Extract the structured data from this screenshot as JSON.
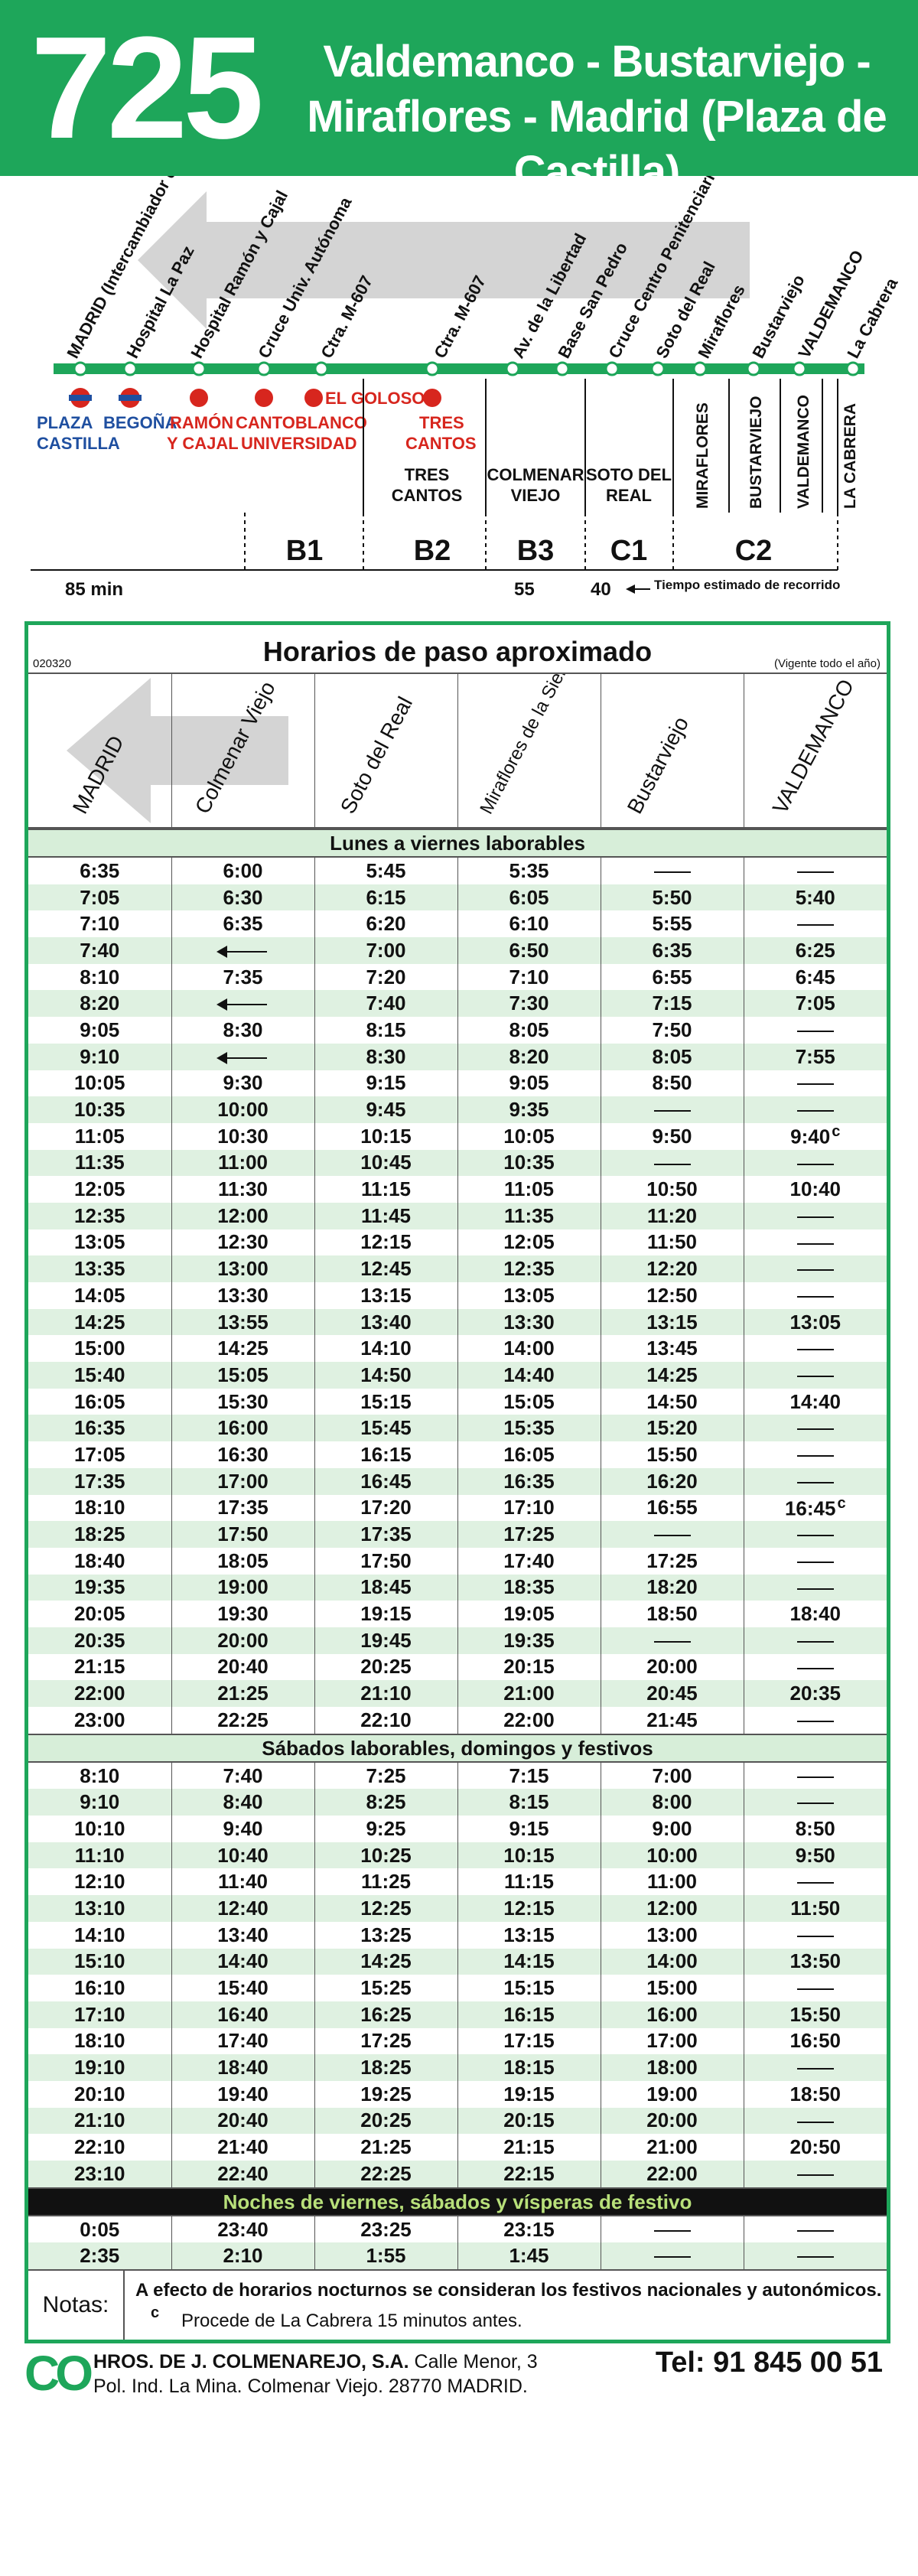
{
  "header": {
    "route": "725",
    "line1": "Valdemanco - Bustarviejo -",
    "line2": "Miraflores - Madrid (Plaza de Castilla)"
  },
  "map": {
    "stops": [
      "MADRID (Intercambiador de Plaza de Castilla)",
      "Hospital La Paz",
      "Hospital Ramón y Cajal",
      "Cruce Univ. Autónoma",
      "Ctra. M-607",
      "Ctra. M-607",
      "Av. de la Libertad",
      "Base San Pedro",
      "Cruce Centro Penitenciario Soto del Real",
      "Soto del Real",
      "Miraflores",
      "Bustarviejo",
      "VALDEMANCO",
      "La Cabrera"
    ],
    "metro_labels": [
      "PLAZA",
      "CASTILLA",
      "BEGOÑA"
    ],
    "rail_labels": [
      "RAMÓN",
      "Y CAJAL",
      "CANTOBLANCO",
      "UNIVERSIDAD",
      "EL GOLOSO",
      "TRES",
      "CANTOS"
    ],
    "towns": [
      "TRES",
      "CANTOS",
      "COLMENAR",
      "VIEJO",
      "SOTO DEL",
      "REAL",
      "MIRAFLORES",
      "BUSTARVIEJO",
      "VALDEMANCO",
      "LA CABRERA"
    ],
    "zones": [
      "B1",
      "B2",
      "B3",
      "C1",
      "C2"
    ],
    "times": [
      "85 min",
      "55",
      "40"
    ],
    "time_note": "Tiempo estimado de recorrido"
  },
  "timetable": {
    "code": "020320",
    "title": "Horarios de paso aproximado",
    "validity": "(Vigente todo el año)",
    "columns": [
      "MADRID",
      "Colmenar Viejo",
      "Soto del Real",
      "Miraflores de la Sierra",
      "Bustarviejo",
      "VALDEMANCO"
    ],
    "sections": [
      {
        "title": "Lunes a viernes laborables",
        "rows": [
          [
            "6:35",
            "6:00",
            "5:45",
            "5:35",
            "-",
            "-"
          ],
          [
            "7:05",
            "6:30",
            "6:15",
            "6:05",
            "5:50",
            "5:40"
          ],
          [
            "7:10",
            "6:35",
            "6:20",
            "6:10",
            "5:55",
            "-"
          ],
          [
            "7:40",
            "<",
            "7:00",
            "6:50",
            "6:35",
            "6:25"
          ],
          [
            "8:10",
            "7:35",
            "7:20",
            "7:10",
            "6:55",
            "6:45"
          ],
          [
            "8:20",
            "<",
            "7:40",
            "7:30",
            "7:15",
            "7:05"
          ],
          [
            "9:05",
            "8:30",
            "8:15",
            "8:05",
            "7:50",
            "-"
          ],
          [
            "9:10",
            "<",
            "8:30",
            "8:20",
            "8:05",
            "7:55"
          ],
          [
            "10:05",
            "9:30",
            "9:15",
            "9:05",
            "8:50",
            "-"
          ],
          [
            "10:35",
            "10:00",
            "9:45",
            "9:35",
            "-",
            "-"
          ],
          [
            "11:05",
            "10:30",
            "10:15",
            "10:05",
            "9:50",
            "9:40^c"
          ],
          [
            "11:35",
            "11:00",
            "10:45",
            "10:35",
            "-",
            "-"
          ],
          [
            "12:05",
            "11:30",
            "11:15",
            "11:05",
            "10:50",
            "10:40"
          ],
          [
            "12:35",
            "12:00",
            "11:45",
            "11:35",
            "11:20",
            "-"
          ],
          [
            "13:05",
            "12:30",
            "12:15",
            "12:05",
            "11:50",
            "-"
          ],
          [
            "13:35",
            "13:00",
            "12:45",
            "12:35",
            "12:20",
            "-"
          ],
          [
            "14:05",
            "13:30",
            "13:15",
            "13:05",
            "12:50",
            "-"
          ],
          [
            "14:25",
            "13:55",
            "13:40",
            "13:30",
            "13:15",
            "13:05"
          ],
          [
            "15:00",
            "14:25",
            "14:10",
            "14:00",
            "13:45",
            "-"
          ],
          [
            "15:40",
            "15:05",
            "14:50",
            "14:40",
            "14:25",
            "-"
          ],
          [
            "16:05",
            "15:30",
            "15:15",
            "15:05",
            "14:50",
            "14:40"
          ],
          [
            "16:35",
            "16:00",
            "15:45",
            "15:35",
            "15:20",
            "-"
          ],
          [
            "17:05",
            "16:30",
            "16:15",
            "16:05",
            "15:50",
            "-"
          ],
          [
            "17:35",
            "17:00",
            "16:45",
            "16:35",
            "16:20",
            "-"
          ],
          [
            "18:10",
            "17:35",
            "17:20",
            "17:10",
            "16:55",
            "16:45^c"
          ],
          [
            "18:25",
            "17:50",
            "17:35",
            "17:25",
            "-",
            "-"
          ],
          [
            "18:40",
            "18:05",
            "17:50",
            "17:40",
            "17:25",
            "-"
          ],
          [
            "19:35",
            "19:00",
            "18:45",
            "18:35",
            "18:20",
            "-"
          ],
          [
            "20:05",
            "19:30",
            "19:15",
            "19:05",
            "18:50",
            "18:40"
          ],
          [
            "20:35",
            "20:00",
            "19:45",
            "19:35",
            "-",
            "-"
          ],
          [
            "21:15",
            "20:40",
            "20:25",
            "20:15",
            "20:00",
            "-"
          ],
          [
            "22:00",
            "21:25",
            "21:10",
            "21:00",
            "20:45",
            "20:35"
          ],
          [
            "23:00",
            "22:25",
            "22:10",
            "22:00",
            "21:45",
            "-"
          ]
        ]
      },
      {
        "title": "Sábados laborables, domingos y festivos",
        "rows": [
          [
            "8:10",
            "7:40",
            "7:25",
            "7:15",
            "7:00",
            "-"
          ],
          [
            "9:10",
            "8:40",
            "8:25",
            "8:15",
            "8:00",
            "-"
          ],
          [
            "10:10",
            "9:40",
            "9:25",
            "9:15",
            "9:00",
            "8:50"
          ],
          [
            "11:10",
            "10:40",
            "10:25",
            "10:15",
            "10:00",
            "9:50"
          ],
          [
            "12:10",
            "11:40",
            "11:25",
            "11:15",
            "11:00",
            "-"
          ],
          [
            "13:10",
            "12:40",
            "12:25",
            "12:15",
            "12:00",
            "11:50"
          ],
          [
            "14:10",
            "13:40",
            "13:25",
            "13:15",
            "13:00",
            "-"
          ],
          [
            "15:10",
            "14:40",
            "14:25",
            "14:15",
            "14:00",
            "13:50"
          ],
          [
            "16:10",
            "15:40",
            "15:25",
            "15:15",
            "15:00",
            "-"
          ],
          [
            "17:10",
            "16:40",
            "16:25",
            "16:15",
            "16:00",
            "15:50"
          ],
          [
            "18:10",
            "17:40",
            "17:25",
            "17:15",
            "17:00",
            "16:50"
          ],
          [
            "19:10",
            "18:40",
            "18:25",
            "18:15",
            "18:00",
            "-"
          ],
          [
            "20:10",
            "19:40",
            "19:25",
            "19:15",
            "19:00",
            "18:50"
          ],
          [
            "21:10",
            "20:40",
            "20:25",
            "20:15",
            "20:00",
            "-"
          ],
          [
            "22:10",
            "21:40",
            "21:25",
            "21:15",
            "21:00",
            "20:50"
          ],
          [
            "23:10",
            "22:40",
            "22:25",
            "22:15",
            "22:00",
            "-"
          ]
        ]
      },
      {
        "title": "Noches de viernes, sábados y vísperas de festivo",
        "night": true,
        "rows": [
          [
            "0:05",
            "23:40",
            "23:25",
            "23:15",
            "-",
            "-"
          ],
          [
            "2:35",
            "2:10",
            "1:55",
            "1:45",
            "-",
            "-"
          ]
        ]
      }
    ],
    "notes_label": "Notas:",
    "note1": "A efecto de horarios nocturnos se consideran los festivos nacionales y autonómicos.",
    "note2_mark": "c",
    "note2": "Procede de La Cabrera 15 minutos antes."
  },
  "company": {
    "logo": "CO",
    "name": "HROS. DE J. COLMENAREJO, S.A.",
    "address1": "Calle Menor, 3",
    "address2": "Pol. Ind. La Mina. Colmenar Viejo. 28770 MADRID.",
    "phone": "Tel: 91 845 00 51"
  },
  "colors": {
    "brand_green": "#1ea65a",
    "row_tint": "#dff1e1",
    "metro_red": "#d7261e",
    "metro_blue": "#1f4fa0"
  }
}
